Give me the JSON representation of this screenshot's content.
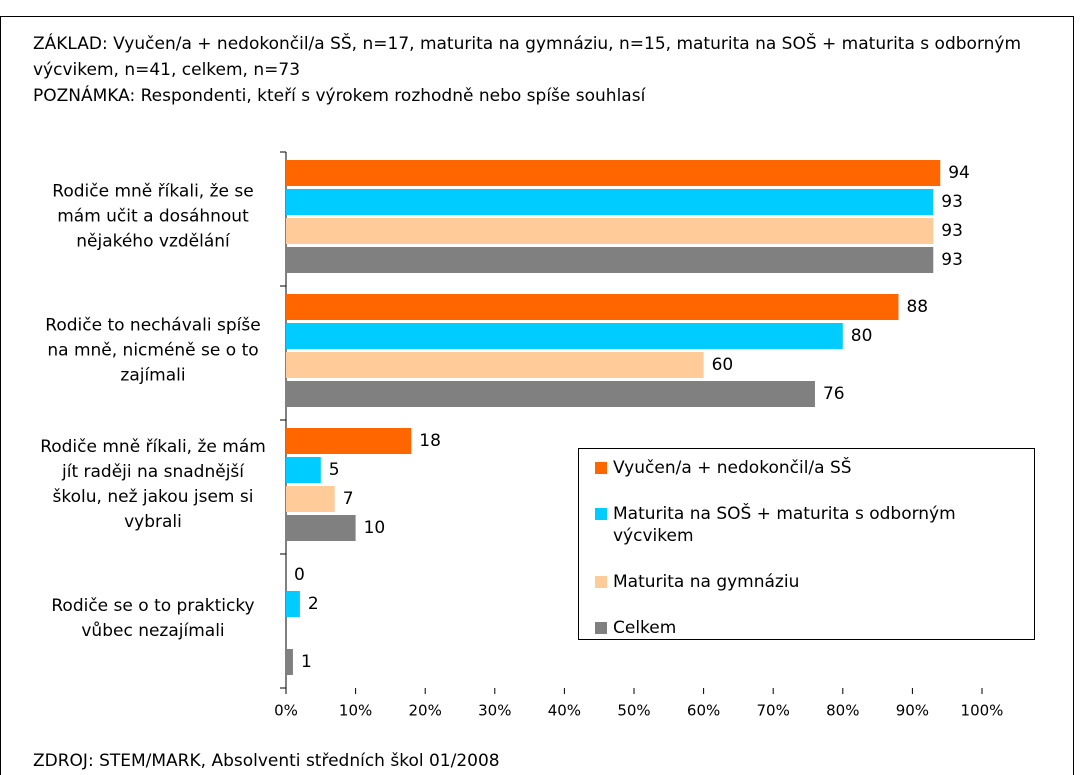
{
  "chart_data": {
    "type": "hbar",
    "notes": [
      "ZÁKLAD: Vyučen/a + nedokončil/a SŠ, n=17, maturita na gymnáziu, n=15, maturita na SOŠ + maturita s odborným výcvikem, n=41, celkem, n=73",
      "POZNÁMKA: Respondenti, kteří s výrokem rozhodně nebo spíše souhlasí"
    ],
    "source": "ZDROJ: STEM/MARK, Absolventi středních škol 01/2008",
    "categories": [
      "Rodiče mně říkali, že se mám učit a dosáhnout nějakého vzdělání",
      "Rodiče to nechávali spíše na mně, nicméně se o to zajímali",
      "Rodiče mně říkali, že mám jít raději na snadnější školu, než jakou jsem si vybrali",
      "Rodiče se o to prakticky vůbec nezajímali"
    ],
    "series": [
      {
        "name": "Vyučen/a + nedokončil/a SŠ",
        "color": "#ff6600",
        "values": [
          94,
          88,
          18,
          0
        ]
      },
      {
        "name": "Maturita na SOŠ + maturita s odborným výcvikem",
        "color": "#00ccff",
        "values": [
          93,
          80,
          5,
          2
        ]
      },
      {
        "name": "Maturita na gymnáziu",
        "color": "#ffcc99",
        "values": [
          93,
          60,
          7,
          null
        ]
      },
      {
        "name": "Celkem",
        "color": "#808080",
        "values": [
          93,
          76,
          10,
          1
        ]
      }
    ],
    "xlim": [
      0,
      100
    ],
    "xticks": [
      {
        "value": 0,
        "label": "0%"
      },
      {
        "value": 10,
        "label": "10%"
      },
      {
        "value": 20,
        "label": "20%"
      },
      {
        "value": 30,
        "label": "30%"
      },
      {
        "value": 40,
        "label": "40%"
      },
      {
        "value": 50,
        "label": "50%"
      },
      {
        "value": 60,
        "label": "60%"
      },
      {
        "value": 70,
        "label": "70%"
      },
      {
        "value": 80,
        "label": "80%"
      },
      {
        "value": 90,
        "label": "90%"
      },
      {
        "value": 100,
        "label": "100%"
      }
    ],
    "legend": "lower right"
  }
}
